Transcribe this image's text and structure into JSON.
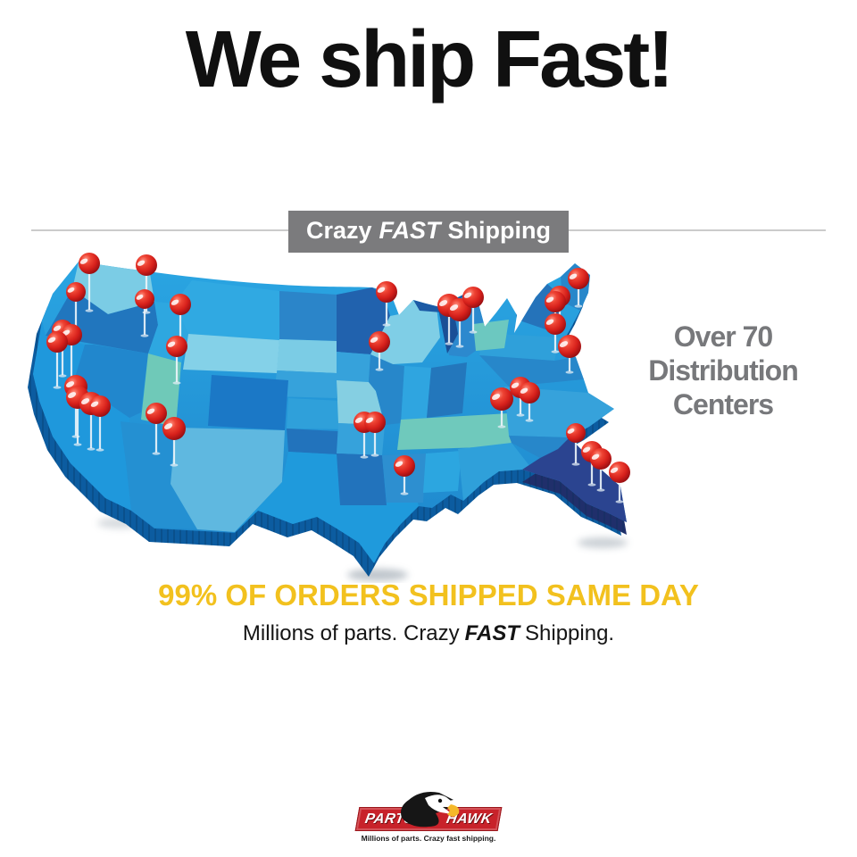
{
  "title": "We ship Fast!",
  "banner": {
    "word1": "Crazy",
    "word2": "FAST",
    "word3": "Shipping"
  },
  "callout": {
    "line1": "Over 70",
    "line2": "Distribution",
    "line3": "Centers"
  },
  "headline": "99% OF ORDERS SHIPPED SAME DAY",
  "subheadline": {
    "pre": "Millions of parts. Crazy",
    "fast": "FAST",
    "post": "Shipping."
  },
  "logo": {
    "left": "PARTS",
    "right": "HAWK",
    "tagline": "Millions of parts. Crazy fast shipping."
  },
  "map": {
    "description": "3D blue map of the United States with red push-pins marking distribution centers",
    "pins": [
      [
        75,
        17,
        12,
        52
      ],
      [
        139,
        19,
        12,
        52
      ],
      [
        60,
        49,
        11,
        45
      ],
      [
        137,
        57,
        11,
        40
      ],
      [
        177,
        63,
        12,
        40
      ],
      [
        45,
        92,
        12,
        50
      ],
      [
        55,
        97,
        12,
        50
      ],
      [
        39,
        105,
        12,
        50
      ],
      [
        173,
        110,
        12,
        40
      ],
      [
        60,
        155,
        13,
        55
      ],
      [
        62,
        167,
        13,
        52
      ],
      [
        77,
        174,
        13,
        50
      ],
      [
        87,
        177,
        12,
        48
      ],
      [
        150,
        185,
        12,
        44
      ],
      [
        170,
        202,
        13,
        40
      ],
      [
        408,
        49,
        12,
        36
      ],
      [
        400,
        105,
        12,
        30
      ],
      [
        478,
        64,
        13,
        42
      ],
      [
        490,
        69,
        13,
        40
      ],
      [
        505,
        55,
        12,
        38
      ],
      [
        623,
        34,
        12,
        30
      ],
      [
        602,
        54,
        12,
        32
      ],
      [
        597,
        60,
        12,
        32
      ],
      [
        597,
        85,
        12,
        30
      ],
      [
        613,
        110,
        13,
        28
      ],
      [
        558,
        156,
        12,
        30
      ],
      [
        568,
        162,
        12,
        30
      ],
      [
        537,
        169,
        13,
        30
      ],
      [
        383,
        195,
        12,
        38
      ],
      [
        395,
        195,
        12,
        36
      ],
      [
        428,
        244,
        12,
        30
      ],
      [
        620,
        207,
        11,
        34
      ],
      [
        638,
        228,
        12,
        36
      ],
      [
        648,
        236,
        12,
        34
      ],
      [
        669,
        251,
        12,
        32
      ]
    ]
  },
  "colors": {
    "headline_yellow": "#F2C11E",
    "banner_gray": "#7B7B7D",
    "callout_gray": "#77787B",
    "divider_gray": "#CBCBCB",
    "map_blue": "#1E96DA",
    "map_teal": "#6FC9B8",
    "map_light": "#7FCEE6",
    "map_dark_blue": "#1B78C6",
    "map_navy": "#2B4490",
    "map_depth": "#0C5CA0",
    "pin_red": "#D6201B",
    "logo_red": "#C8222A"
  }
}
